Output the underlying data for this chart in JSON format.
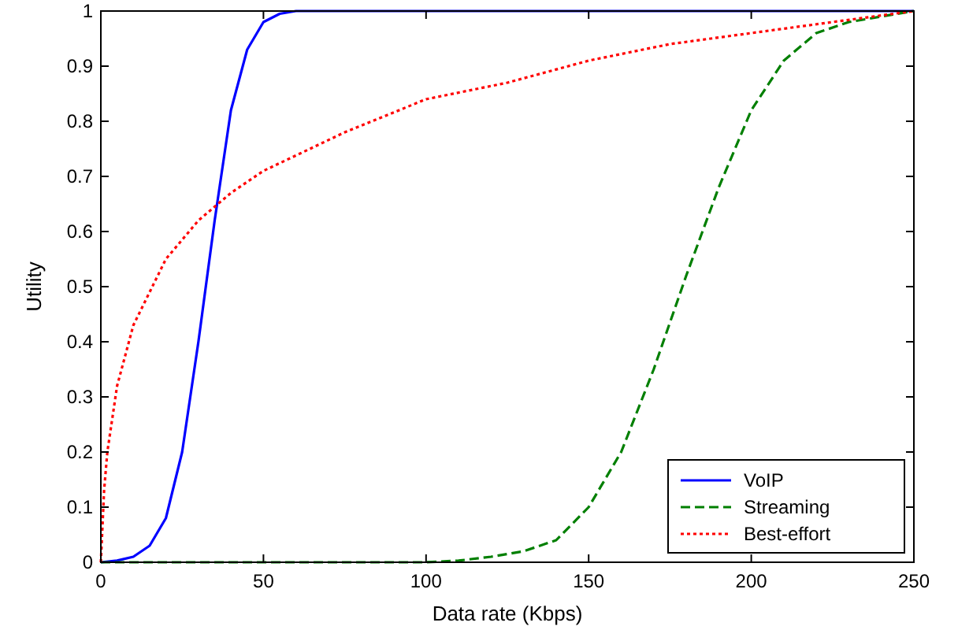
{
  "chart_data": {
    "type": "line",
    "xlabel": "Data rate (Kbps)",
    "ylabel": "Utility",
    "xlim": [
      0,
      250
    ],
    "ylim": [
      0,
      1
    ],
    "xticks": [
      0,
      50,
      100,
      150,
      200,
      250
    ],
    "yticks": [
      0,
      0.1,
      0.2,
      0.3,
      0.4,
      0.5,
      0.6,
      0.7,
      0.8,
      0.9,
      1
    ],
    "grid": false,
    "legend": "bottom right",
    "series": [
      {
        "name": "VoIP",
        "color": "#0000ff",
        "line_style": "solid",
        "x": [
          0,
          5,
          10,
          15,
          20,
          25,
          30,
          35,
          40,
          45,
          50,
          55,
          60,
          250
        ],
        "values": [
          0,
          0.003,
          0.01,
          0.03,
          0.08,
          0.2,
          0.4,
          0.62,
          0.82,
          0.93,
          0.98,
          0.995,
          1,
          1
        ]
      },
      {
        "name": "Streaming",
        "color": "#007f00",
        "line_style": "dashed",
        "x": [
          0,
          100,
          110,
          120,
          130,
          140,
          150,
          160,
          170,
          180,
          190,
          200,
          210,
          220,
          230,
          240,
          250
        ],
        "values": [
          0,
          0,
          0.003,
          0.01,
          0.02,
          0.04,
          0.1,
          0.2,
          0.35,
          0.52,
          0.68,
          0.82,
          0.91,
          0.96,
          0.98,
          0.99,
          1
        ]
      },
      {
        "name": "Best-effort",
        "color": "#ff0000",
        "line_style": "dotted",
        "x": [
          0,
          1,
          2,
          5,
          10,
          20,
          30,
          40,
          50,
          75,
          100,
          125,
          150,
          175,
          200,
          225,
          250
        ],
        "values": [
          0,
          0.13,
          0.2,
          0.32,
          0.43,
          0.55,
          0.62,
          0.67,
          0.71,
          0.78,
          0.84,
          0.87,
          0.91,
          0.94,
          0.96,
          0.98,
          1
        ]
      }
    ]
  }
}
